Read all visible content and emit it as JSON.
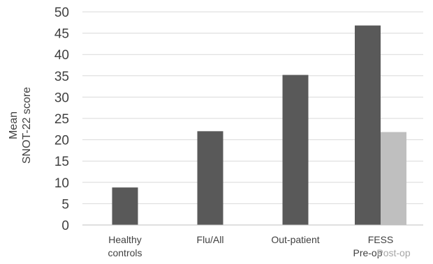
{
  "chart_data": {
    "type": "bar",
    "title": "",
    "ylabel": [
      "Mean",
      "SNOT-22 score"
    ],
    "xlabel": "",
    "ylim": [
      0,
      50
    ],
    "yticks": [
      0,
      5,
      10,
      15,
      20,
      25,
      30,
      35,
      40,
      45,
      50
    ],
    "grid": true,
    "categories": [
      [
        "Healthy",
        "controls"
      ],
      [
        "Flu/All"
      ],
      [
        "Out-patient"
      ],
      [
        "FESS"
      ]
    ],
    "series": [
      {
        "name": "Pre-op",
        "color": "#595959",
        "values": [
          8.8,
          22,
          35.2,
          46.8
        ]
      },
      {
        "name": "Post-op",
        "color": "#bfbfbf",
        "values": [
          null,
          null,
          null,
          21.8
        ]
      }
    ]
  }
}
